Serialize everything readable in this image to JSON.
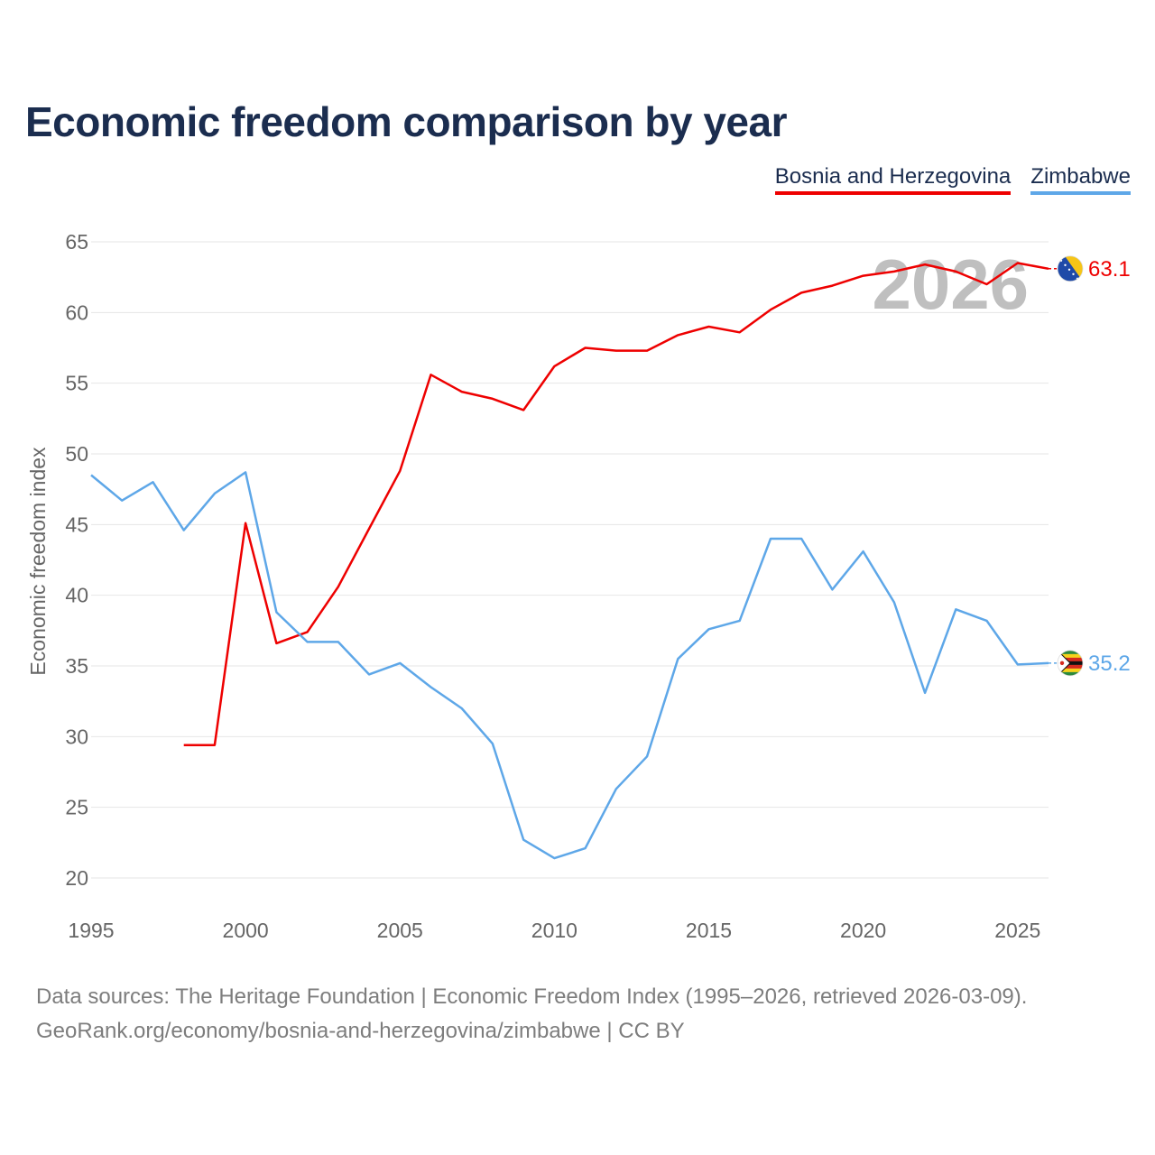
{
  "chart_data": {
    "type": "line",
    "title": "Economic freedom comparison by year",
    "xlabel": "",
    "ylabel": "Economic freedom index",
    "xlim": [
      1995,
      2026
    ],
    "ylim": [
      20,
      65
    ],
    "x_ticks": [
      1995,
      2000,
      2005,
      2010,
      2015,
      2020,
      2025
    ],
    "y_ticks": [
      20,
      25,
      30,
      35,
      40,
      45,
      50,
      55,
      60,
      65
    ],
    "grid": true,
    "legend_position": "top-right",
    "year_watermark": "2026",
    "series": [
      {
        "name": "Bosnia and Herzegovina",
        "color": "#ee0000",
        "flag_icon": "bosnia-flag-icon",
        "end_label": "63.1",
        "x": [
          1998,
          1999,
          2000,
          2001,
          2002,
          2003,
          2004,
          2005,
          2006,
          2007,
          2008,
          2009,
          2010,
          2011,
          2012,
          2013,
          2014,
          2015,
          2016,
          2017,
          2018,
          2019,
          2020,
          2021,
          2022,
          2023,
          2024,
          2025,
          2026
        ],
        "values": [
          29.4,
          29.4,
          45.1,
          36.6,
          37.4,
          40.6,
          44.7,
          48.8,
          55.6,
          54.4,
          53.9,
          53.1,
          56.2,
          57.5,
          57.3,
          57.3,
          58.4,
          59.0,
          58.6,
          60.2,
          61.4,
          61.9,
          62.6,
          62.9,
          63.4,
          62.9,
          62.0,
          63.5,
          63.1
        ]
      },
      {
        "name": "Zimbabwe",
        "color": "#5ea7e8",
        "flag_icon": "zimbabwe-flag-icon",
        "end_label": "35.2",
        "x": [
          1995,
          1996,
          1997,
          1998,
          1999,
          2000,
          2001,
          2002,
          2003,
          2004,
          2005,
          2006,
          2007,
          2008,
          2009,
          2010,
          2011,
          2012,
          2013,
          2014,
          2015,
          2016,
          2017,
          2018,
          2019,
          2020,
          2021,
          2022,
          2023,
          2024,
          2025,
          2026
        ],
        "values": [
          48.5,
          46.7,
          48.0,
          44.6,
          47.2,
          48.7,
          38.8,
          36.7,
          36.7,
          34.4,
          35.2,
          33.5,
          32.0,
          29.5,
          22.7,
          21.4,
          22.1,
          26.3,
          28.6,
          35.5,
          37.6,
          38.2,
          44.0,
          44.0,
          40.4,
          43.1,
          39.5,
          33.1,
          39.0,
          38.2,
          35.1,
          35.2
        ]
      }
    ]
  },
  "legend": {
    "items": [
      "Bosnia and Herzegovina",
      "Zimbabwe"
    ]
  },
  "footer": {
    "source_line": "Data sources: The Heritage Foundation | Economic Freedom Index (1995–2026, retrieved 2026-03-09).",
    "credit_line": "GeoRank.org/economy/bosnia-and-herzegovina/zimbabwe | CC BY"
  }
}
